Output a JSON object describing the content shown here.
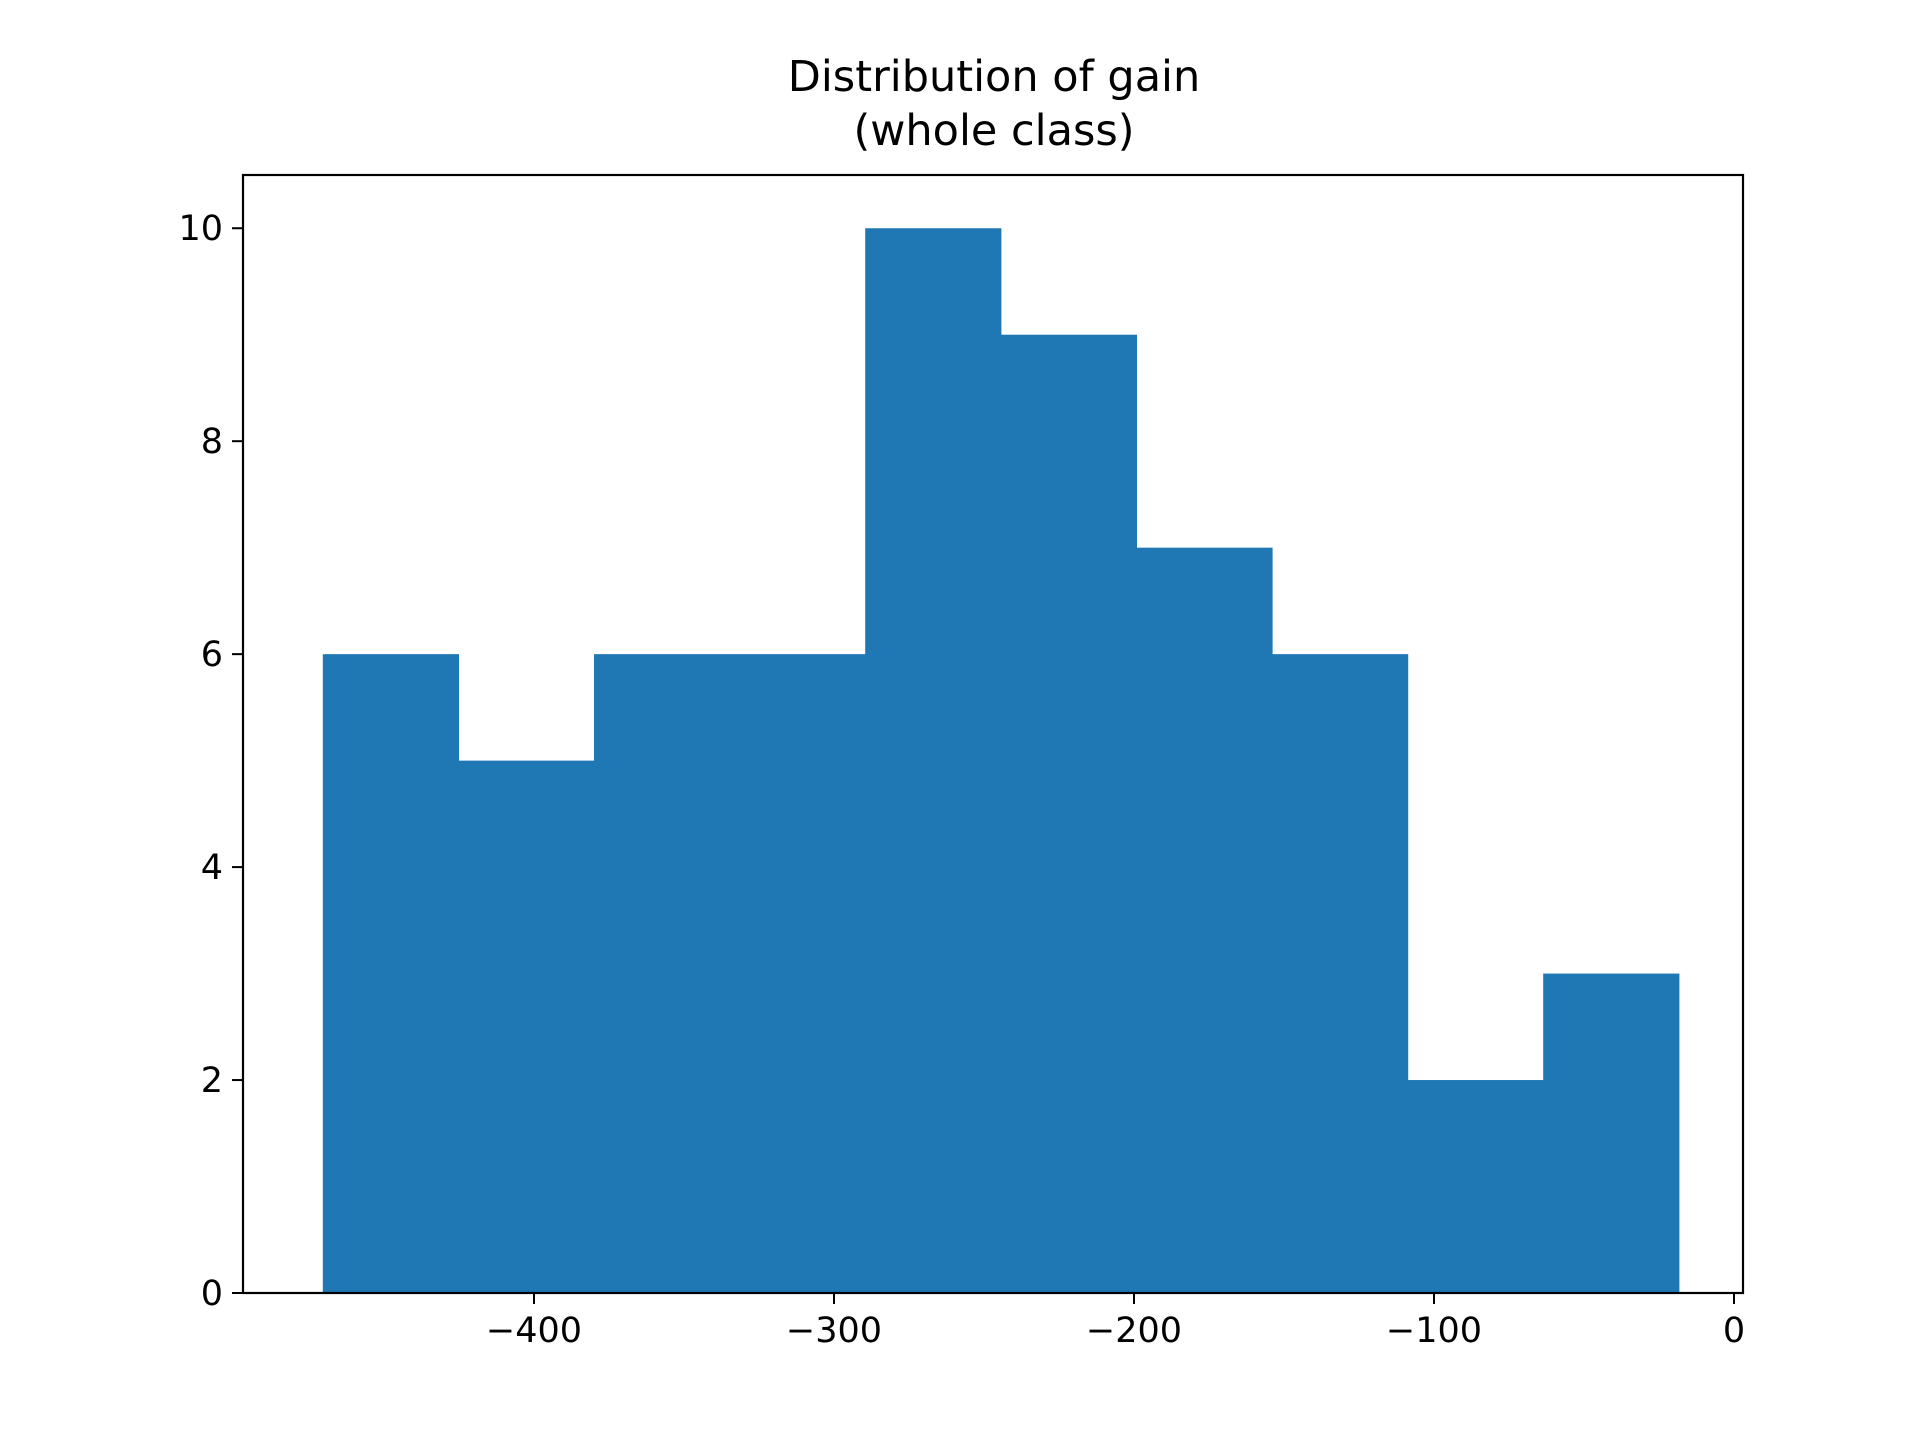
{
  "chart_data": {
    "type": "bar",
    "title_lines": [
      "Distribution of gain",
      "(whole class)"
    ],
    "xlabel": "",
    "ylabel": "",
    "bin_edges": [
      -470.4,
      -425.2,
      -380.0,
      -334.8,
      -289.6,
      -244.4,
      -199.2,
      -154.0,
      -108.8,
      -63.6,
      -18.4
    ],
    "values": [
      6,
      5,
      6,
      6,
      10,
      9,
      7,
      6,
      2,
      3
    ],
    "xlim": [
      -497,
      3
    ],
    "ylim": [
      0,
      10.5
    ],
    "xticks": [
      -400,
      -300,
      -200,
      -100,
      0
    ],
    "xtick_labels": [
      "−400",
      "−300",
      "−200",
      "−100",
      "0"
    ],
    "yticks": [
      0,
      2,
      4,
      6,
      8,
      10
    ],
    "ytick_labels": [
      "0",
      "2",
      "4",
      "6",
      "8",
      "10"
    ],
    "bar_color": "#1f77b4",
    "grid": false,
    "legend": "none"
  }
}
